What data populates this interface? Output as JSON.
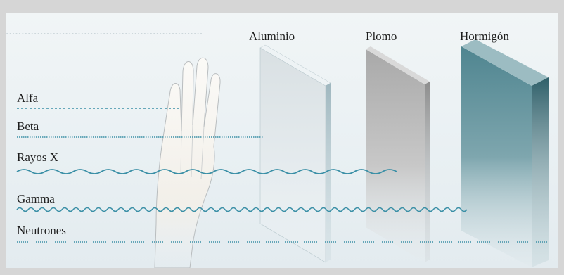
{
  "materials": [
    "Aluminio",
    "Plomo",
    "Hormigón"
  ],
  "radiations": [
    "Alfa",
    "Beta",
    "Rayos X",
    "Gamma",
    "Neutrones"
  ],
  "colors": {
    "ray": "#3a8fa6",
    "aluminum": "#c3ccd0",
    "lead": "#b6b6b6",
    "concrete": "#5c8b93",
    "text": "#1e1e1e",
    "hand": "#f4f1ec"
  }
}
